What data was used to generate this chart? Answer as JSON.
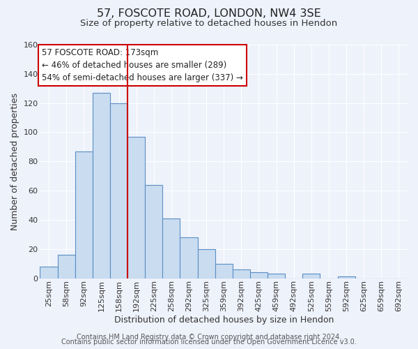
{
  "title": "57, FOSCOTE ROAD, LONDON, NW4 3SE",
  "subtitle": "Size of property relative to detached houses in Hendon",
  "xlabel": "Distribution of detached houses by size in Hendon",
  "ylabel": "Number of detached properties",
  "bar_labels": [
    "25sqm",
    "58sqm",
    "92sqm",
    "125sqm",
    "158sqm",
    "192sqm",
    "225sqm",
    "258sqm",
    "292sqm",
    "325sqm",
    "359sqm",
    "392sqm",
    "425sqm",
    "459sqm",
    "492sqm",
    "525sqm",
    "559sqm",
    "592sqm",
    "625sqm",
    "659sqm",
    "692sqm"
  ],
  "bar_values": [
    8,
    16,
    87,
    127,
    120,
    97,
    64,
    41,
    28,
    20,
    10,
    6,
    4,
    3,
    0,
    3,
    0,
    1,
    0,
    0,
    0
  ],
  "bar_color": "#c9dcf0",
  "bar_edgecolor": "#5b8ec4",
  "vline_x": 4.5,
  "vline_color": "#cc0000",
  "ylim": [
    0,
    160
  ],
  "yticks": [
    0,
    20,
    40,
    60,
    80,
    100,
    120,
    140,
    160
  ],
  "annotation_line1": "57 FOSCOTE ROAD: 173sqm",
  "annotation_line2": "← 46% of detached houses are smaller (289)",
  "annotation_line3": "54% of semi-detached houses are larger (337) →",
  "footer_line1": "Contains HM Land Registry data © Crown copyright and database right 2024.",
  "footer_line2": "Contains public sector information licensed under the Open Government Licence v3.0.",
  "background_color": "#eef2fb",
  "plot_bg_color": "#eef2fb",
  "grid_color": "#ffffff",
  "title_fontsize": 11.5,
  "subtitle_fontsize": 9.5,
  "axis_label_fontsize": 9,
  "tick_fontsize": 8,
  "annotation_fontsize": 8.5,
  "footer_fontsize": 7
}
